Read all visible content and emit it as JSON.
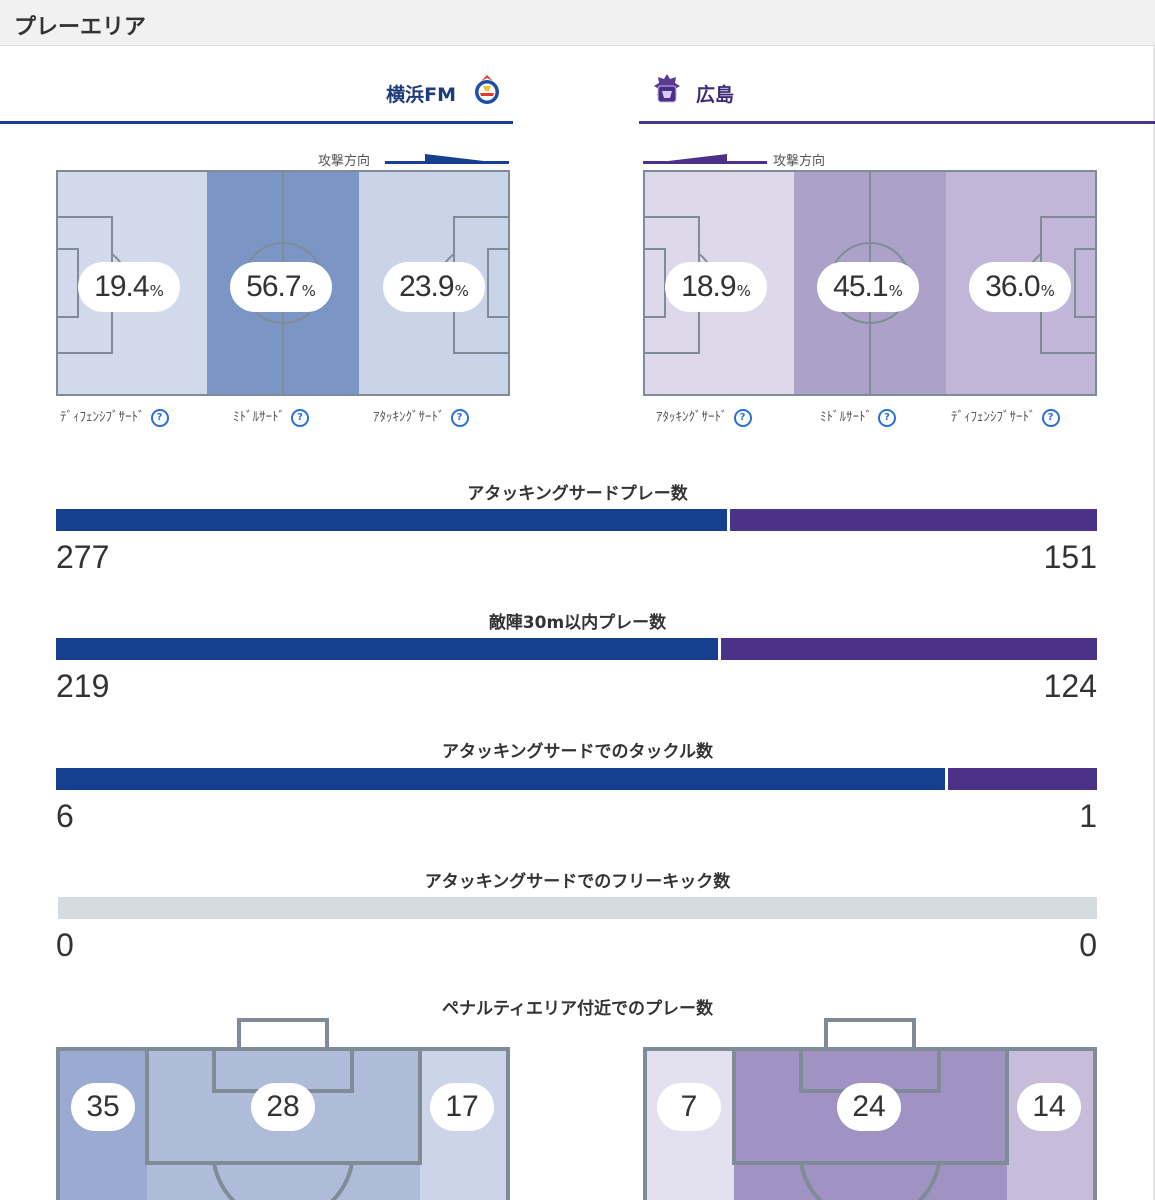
{
  "header": {
    "title": "プレーエリア"
  },
  "teams": {
    "home": {
      "name": "横浜FM",
      "color": "#16408f",
      "logo_icon": "yokohama-fm-crest-icon"
    },
    "away": {
      "name": "広島",
      "color": "#4b3187",
      "logo_icon": "hiroshima-crest-icon"
    }
  },
  "direction_label": "攻撃方向",
  "play_area": {
    "home": {
      "zones": [
        {
          "label": "ﾃﾞｨﾌｪﾝｼﾌﾞｻｰﾄﾞ",
          "value": "19.4",
          "unit": "%"
        },
        {
          "label": "ﾐﾄﾞﾙｻｰﾄﾞ",
          "value": "56.7",
          "unit": "%"
        },
        {
          "label": "ｱﾀｯｷﾝｸﾞｻｰﾄﾞ",
          "value": "23.9",
          "unit": "%"
        }
      ]
    },
    "away": {
      "zones": [
        {
          "label": "ｱﾀｯｷﾝｸﾞｻｰﾄﾞ",
          "value": "18.9",
          "unit": "%"
        },
        {
          "label": "ﾐﾄﾞﾙｻｰﾄﾞ",
          "value": "45.1",
          "unit": "%"
        },
        {
          "label": "ﾃﾞｨﾌｪﾝｼﾌﾞｻｰﾄﾞ",
          "value": "36.0",
          "unit": "%"
        }
      ]
    }
  },
  "stats": [
    {
      "title": "アタッキングサードプレー数",
      "home": "277",
      "away": "151"
    },
    {
      "title": "敵陣30m以内プレー数",
      "home": "219",
      "away": "124"
    },
    {
      "title": "アタッキングサードでのタックル数",
      "home": "6",
      "away": "1"
    },
    {
      "title": "アタッキングサードでのフリーキック数",
      "home": "0",
      "away": "0"
    }
  ],
  "penalty_area": {
    "title": "ペナルティエリア付近でのプレー数",
    "home": [
      "35",
      "28",
      "17"
    ],
    "away": [
      "7",
      "24",
      "14"
    ]
  }
}
